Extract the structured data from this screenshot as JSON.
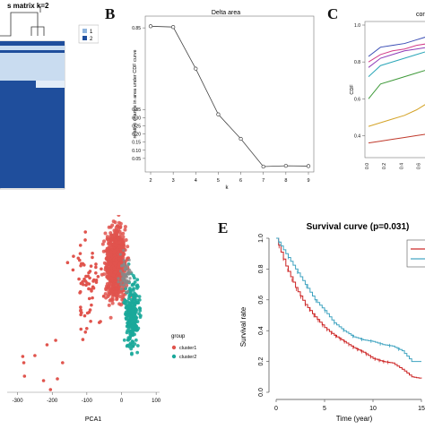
{
  "panel_labels": {
    "B": "B",
    "C": "C",
    "E": "E"
  },
  "chart_data": [
    {
      "id": "A",
      "type": "heatmap",
      "title": "s matrix k=2",
      "legend": [
        "1",
        "2"
      ],
      "colors": {
        "dark": "#1f4e9c",
        "light": "#c9dcf0",
        "legend1": "#8fb4dd",
        "legend2": "#1f4e9c"
      }
    },
    {
      "id": "B",
      "type": "line",
      "title": "Delta area",
      "xlabel": "k",
      "ylabel": "relative change in area under CDF curve",
      "x": [
        2,
        3,
        4,
        5,
        6,
        7,
        8,
        9
      ],
      "y": [
        0.86,
        0.855,
        0.6,
        0.32,
        0.17,
        0.0,
        0.005,
        0.003
      ],
      "xlim": [
        2,
        9
      ],
      "ylim": [
        0,
        0.9
      ],
      "yticks": [
        0.05,
        0.1,
        0.15,
        0.2,
        0.25,
        0.3,
        0.35,
        0.85
      ]
    },
    {
      "id": "C",
      "type": "line",
      "title": "con",
      "ylabel": "CDF",
      "xticks": [
        "0.0",
        "0.2",
        "0.4",
        "0.6"
      ],
      "yticks": [
        "0.4",
        "0.6",
        "0.8",
        "1.0"
      ],
      "xlim": [
        0,
        0.7
      ],
      "ylim": [
        0.3,
        1.0
      ],
      "series": [
        {
          "color": "#3a4db5",
          "values": [
            0.83,
            0.88,
            0.89,
            0.9,
            0.92,
            0.94
          ]
        },
        {
          "color": "#d23c8a",
          "values": [
            0.8,
            0.84,
            0.86,
            0.87,
            0.89,
            0.9
          ]
        },
        {
          "color": "#8e3bb8",
          "values": [
            0.77,
            0.82,
            0.84,
            0.86,
            0.87,
            0.88
          ]
        },
        {
          "color": "#2aa6b8",
          "values": [
            0.72,
            0.78,
            0.8,
            0.82,
            0.84,
            0.86
          ]
        },
        {
          "color": "#3f9a3a",
          "values": [
            0.6,
            0.68,
            0.7,
            0.72,
            0.74,
            0.76
          ]
        },
        {
          "color": "#d4a327",
          "values": [
            0.45,
            0.47,
            0.49,
            0.51,
            0.54,
            0.58
          ]
        },
        {
          "color": "#c0392b",
          "values": [
            0.36,
            0.37,
            0.38,
            0.39,
            0.4,
            0.41
          ]
        }
      ]
    },
    {
      "id": "D",
      "type": "scatter",
      "xlabel": "PCA1",
      "xticks": [
        -300,
        -200,
        -100,
        0,
        100
      ],
      "xlim": [
        -330,
        110
      ],
      "legend_title": "group",
      "series": [
        {
          "name": "cluster1",
          "color": "#e0544d"
        },
        {
          "name": "cluster2",
          "color": "#1aa89a"
        }
      ]
    },
    {
      "id": "E",
      "type": "line",
      "title": "Survival curve (p=0.031)",
      "xlabel": "Time (year)",
      "ylabel": "Survival rate",
      "xticks": [
        0,
        5,
        10,
        15
      ],
      "yticks": [
        "0.0",
        "0.2",
        "0.4",
        "0.6",
        "0.8",
        "1.0"
      ],
      "xlim": [
        0,
        15
      ],
      "ylim": [
        0,
        1
      ],
      "series": [
        {
          "color": "#cc2222",
          "x": [
            0,
            1,
            2,
            3,
            4,
            5,
            6,
            7,
            8,
            9,
            10,
            11,
            12,
            13,
            14,
            15
          ],
          "y": [
            1.0,
            0.82,
            0.68,
            0.57,
            0.49,
            0.42,
            0.37,
            0.33,
            0.29,
            0.26,
            0.22,
            0.2,
            0.19,
            0.15,
            0.1,
            0.09
          ]
        },
        {
          "color": "#3fa3c0",
          "x": [
            0,
            1,
            2,
            3,
            4,
            5,
            6,
            7,
            8,
            9,
            10,
            11,
            12,
            13,
            14,
            15
          ],
          "y": [
            1.0,
            0.9,
            0.8,
            0.7,
            0.6,
            0.53,
            0.45,
            0.4,
            0.36,
            0.34,
            0.33,
            0.31,
            0.3,
            0.27,
            0.2,
            0.2
          ]
        }
      ]
    }
  ]
}
